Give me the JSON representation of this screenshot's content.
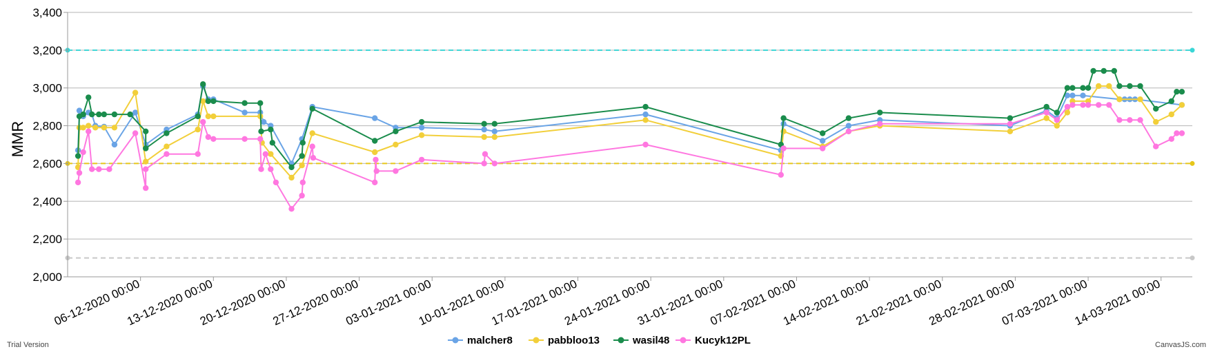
{
  "chart_data": {
    "type": "line",
    "ylabel": "MMR",
    "ylim": [
      2000,
      3400
    ],
    "yticks": [
      "2,000",
      "2,200",
      "2,400",
      "2,600",
      "2,800",
      "3,000",
      "3,200",
      "3,400"
    ],
    "xlim": [
      "2020-11-29 00:00",
      "2021-03-17 00:00"
    ],
    "xticks": [
      "06-12-2020 00:00",
      "13-12-2020 00:00",
      "20-12-2020 00:00",
      "27-12-2020 00:00",
      "03-01-2021 00:00",
      "10-01-2021 00:00",
      "17-01-2021 00:00",
      "24-01-2021 00:00",
      "31-01-2021 00:00",
      "07-02-2021 00:00",
      "14-02-2021 00:00",
      "21-02-2021 00:00",
      "28-02-2021 00:00",
      "07-03-2021 00:00",
      "14-03-2021 00:00"
    ],
    "grid": true,
    "legend": "bottom-center",
    "reference_lines": [
      {
        "value": 3200,
        "color": "#3ad6d6",
        "style": "dashed"
      },
      {
        "value": 2600,
        "color": "#e6c619",
        "style": "dashed"
      },
      {
        "value": 2100,
        "color": "#c8c8c8",
        "style": "dashed"
      }
    ],
    "series": [
      {
        "name": "malcher8",
        "color": "#6aa4e6",
        "points": [
          [
            "2020-11-30 00:00",
            2670
          ],
          [
            "2020-11-30 03:00",
            2880
          ],
          [
            "2020-11-30 12:00",
            2850
          ],
          [
            "2020-12-01 00:00",
            2870
          ],
          [
            "2020-12-01 08:00",
            2860
          ],
          [
            "2020-12-01 16:00",
            2800
          ],
          [
            "2020-12-02 12:00",
            2795
          ],
          [
            "2020-12-03 12:00",
            2700
          ],
          [
            "2020-12-05 12:00",
            2870
          ],
          [
            "2020-12-06 12:00",
            2700
          ],
          [
            "2020-12-08 12:00",
            2780
          ],
          [
            "2020-12-11 12:00",
            2860
          ],
          [
            "2020-12-12 00:00",
            3010
          ],
          [
            "2020-12-12 12:00",
            2940
          ],
          [
            "2020-12-13 00:00",
            2940
          ],
          [
            "2020-12-16 00:00",
            2870
          ],
          [
            "2020-12-17 12:00",
            2870
          ],
          [
            "2020-12-17 20:00",
            2820
          ],
          [
            "2020-12-18 12:00",
            2800
          ],
          [
            "2020-12-20 12:00",
            2600
          ],
          [
            "2020-12-21 12:00",
            2730
          ],
          [
            "2020-12-22 12:00",
            2900
          ],
          [
            "2020-12-28 12:00",
            2840
          ],
          [
            "2020-12-30 12:00",
            2790
          ],
          [
            "2021-01-02 00:00",
            2790
          ],
          [
            "2021-01-08 00:00",
            2780
          ],
          [
            "2021-01-09 00:00",
            2770
          ],
          [
            "2021-01-23 12:00",
            2860
          ],
          [
            "2021-02-05 12:00",
            2670
          ],
          [
            "2021-02-05 18:00",
            2810
          ],
          [
            "2021-02-09 12:00",
            2720
          ],
          [
            "2021-02-12 00:00",
            2800
          ],
          [
            "2021-02-15 00:00",
            2830
          ],
          [
            "2021-02-27 12:00",
            2800
          ],
          [
            "2021-03-03 00:00",
            2880
          ],
          [
            "2021-03-04 00:00",
            2840
          ],
          [
            "2021-03-05 00:00",
            2960
          ],
          [
            "2021-03-05 12:00",
            2960
          ],
          [
            "2021-03-06 12:00",
            2960
          ],
          [
            "2021-03-10 00:00",
            2940
          ],
          [
            "2021-03-10 12:00",
            2940
          ],
          [
            "2021-03-11 00:00",
            2940
          ],
          [
            "2021-03-11 12:00",
            2940
          ],
          [
            "2021-03-16 00:00",
            2910
          ]
        ]
      },
      {
        "name": "pabbloo13",
        "color": "#f2cf3a",
        "points": [
          [
            "2020-11-30 00:00",
            2580
          ],
          [
            "2020-11-30 03:00",
            2790
          ],
          [
            "2020-11-30 12:00",
            2790
          ],
          [
            "2020-12-01 00:00",
            2800
          ],
          [
            "2020-12-01 16:00",
            2790
          ],
          [
            "2020-12-02 12:00",
            2790
          ],
          [
            "2020-12-03 12:00",
            2790
          ],
          [
            "2020-12-05 12:00",
            2975
          ],
          [
            "2020-12-06 12:00",
            2610
          ],
          [
            "2020-12-08 12:00",
            2690
          ],
          [
            "2020-12-11 12:00",
            2780
          ],
          [
            "2020-12-12 00:00",
            2930
          ],
          [
            "2020-12-12 12:00",
            2850
          ],
          [
            "2020-12-13 00:00",
            2850
          ],
          [
            "2020-12-17 12:00",
            2850
          ],
          [
            "2020-12-17 16:00",
            2710
          ],
          [
            "2020-12-18 12:00",
            2650
          ],
          [
            "2020-12-20 12:00",
            2525
          ],
          [
            "2020-12-21 12:00",
            2590
          ],
          [
            "2020-12-22 12:00",
            2760
          ],
          [
            "2020-12-28 12:00",
            2660
          ],
          [
            "2020-12-30 12:00",
            2700
          ],
          [
            "2021-01-02 00:00",
            2750
          ],
          [
            "2021-01-08 00:00",
            2740
          ],
          [
            "2021-01-09 00:00",
            2740
          ],
          [
            "2021-01-23 12:00",
            2830
          ],
          [
            "2021-02-05 12:00",
            2640
          ],
          [
            "2021-02-05 18:00",
            2770
          ],
          [
            "2021-02-09 12:00",
            2690
          ],
          [
            "2021-02-12 00:00",
            2770
          ],
          [
            "2021-02-15 00:00",
            2800
          ],
          [
            "2021-02-27 12:00",
            2770
          ],
          [
            "2021-03-03 00:00",
            2840
          ],
          [
            "2021-03-04 00:00",
            2800
          ],
          [
            "2021-03-05 00:00",
            2870
          ],
          [
            "2021-03-05 12:00",
            2930
          ],
          [
            "2021-03-07 00:00",
            2930
          ],
          [
            "2021-03-08 00:00",
            3010
          ],
          [
            "2021-03-09 00:00",
            3010
          ],
          [
            "2021-03-10 00:00",
            2940
          ],
          [
            "2021-03-12 00:00",
            2940
          ],
          [
            "2021-03-13 12:00",
            2820
          ],
          [
            "2021-03-15 00:00",
            2860
          ],
          [
            "2021-03-16 00:00",
            2910
          ]
        ]
      },
      {
        "name": "wasil48",
        "color": "#1a8c4c",
        "points": [
          [
            "2020-11-30 00:00",
            2640
          ],
          [
            "2020-11-30 03:00",
            2850
          ],
          [
            "2020-11-30 12:00",
            2860
          ],
          [
            "2020-12-01 00:00",
            2950
          ],
          [
            "2020-12-01 08:00",
            2860
          ],
          [
            "2020-12-02 00:00",
            2860
          ],
          [
            "2020-12-02 12:00",
            2860
          ],
          [
            "2020-12-03 12:00",
            2860
          ],
          [
            "2020-12-05 00:00",
            2860
          ],
          [
            "2020-12-06 12:00",
            2770
          ],
          [
            "2020-12-06 12:00",
            2680
          ],
          [
            "2020-12-08 12:00",
            2760
          ],
          [
            "2020-12-11 12:00",
            2850
          ],
          [
            "2020-12-12 00:00",
            3020
          ],
          [
            "2020-12-12 12:00",
            2930
          ],
          [
            "2020-12-13 00:00",
            2930
          ],
          [
            "2020-12-16 00:00",
            2920
          ],
          [
            "2020-12-17 12:00",
            2920
          ],
          [
            "2020-12-17 14:00",
            2770
          ],
          [
            "2020-12-18 12:00",
            2780
          ],
          [
            "2020-12-18 16:00",
            2710
          ],
          [
            "2020-12-20 12:00",
            2580
          ],
          [
            "2020-12-21 12:00",
            2640
          ],
          [
            "2020-12-21 14:00",
            2710
          ],
          [
            "2020-12-22 12:00",
            2890
          ],
          [
            "2020-12-28 12:00",
            2720
          ],
          [
            "2020-12-30 12:00",
            2770
          ],
          [
            "2021-01-02 00:00",
            2820
          ],
          [
            "2021-01-08 00:00",
            2810
          ],
          [
            "2021-01-09 00:00",
            2810
          ],
          [
            "2021-01-23 12:00",
            2900
          ],
          [
            "2021-02-05 12:00",
            2700
          ],
          [
            "2021-02-05 18:00",
            2840
          ],
          [
            "2021-02-09 12:00",
            2760
          ],
          [
            "2021-02-12 00:00",
            2840
          ],
          [
            "2021-02-15 00:00",
            2870
          ],
          [
            "2021-02-27 12:00",
            2840
          ],
          [
            "2021-03-03 00:00",
            2900
          ],
          [
            "2021-03-04 00:00",
            2870
          ],
          [
            "2021-03-05 00:00",
            3000
          ],
          [
            "2021-03-05 12:00",
            3000
          ],
          [
            "2021-03-06 12:00",
            3000
          ],
          [
            "2021-03-07 00:00",
            3000
          ],
          [
            "2021-03-07 12:00",
            3090
          ],
          [
            "2021-03-08 12:00",
            3090
          ],
          [
            "2021-03-09 12:00",
            3090
          ],
          [
            "2021-03-10 00:00",
            3010
          ],
          [
            "2021-03-11 00:00",
            3010
          ],
          [
            "2021-03-12 00:00",
            3010
          ],
          [
            "2021-03-13 12:00",
            2890
          ],
          [
            "2021-03-15 00:00",
            2930
          ],
          [
            "2021-03-15 12:00",
            2980
          ],
          [
            "2021-03-16 00:00",
            2980
          ]
        ]
      },
      {
        "name": "Kucyk12PL",
        "color": "#ff77e0",
        "points": [
          [
            "2020-11-30 00:00",
            2500
          ],
          [
            "2020-11-30 03:00",
            2550
          ],
          [
            "2020-11-30 12:00",
            2660
          ],
          [
            "2020-12-01 00:00",
            2770
          ],
          [
            "2020-12-01 08:00",
            2570
          ],
          [
            "2020-12-02 00:00",
            2570
          ],
          [
            "2020-12-03 00:00",
            2570
          ],
          [
            "2020-12-05 12:00",
            2760
          ],
          [
            "2020-12-06 12:00",
            2470
          ],
          [
            "2020-12-06 12:00",
            2570
          ],
          [
            "2020-12-08 12:00",
            2650
          ],
          [
            "2020-12-11 12:00",
            2650
          ],
          [
            "2020-12-12 00:00",
            2820
          ],
          [
            "2020-12-12 12:00",
            2740
          ],
          [
            "2020-12-13 00:00",
            2730
          ],
          [
            "2020-12-16 00:00",
            2730
          ],
          [
            "2020-12-17 12:00",
            2730
          ],
          [
            "2020-12-17 14:00",
            2570
          ],
          [
            "2020-12-18 00:00",
            2650
          ],
          [
            "2020-12-18 12:00",
            2570
          ],
          [
            "2020-12-19 00:00",
            2500
          ],
          [
            "2020-12-20 12:00",
            2360
          ],
          [
            "2020-12-21 12:00",
            2430
          ],
          [
            "2020-12-21 14:00",
            2500
          ],
          [
            "2020-12-22 12:00",
            2690
          ],
          [
            "2020-12-22 14:00",
            2630
          ],
          [
            "2020-12-28 12:00",
            2500
          ],
          [
            "2020-12-28 14:00",
            2620
          ],
          [
            "2020-12-28 16:00",
            2560
          ],
          [
            "2020-12-30 12:00",
            2560
          ],
          [
            "2021-01-02 00:00",
            2620
          ],
          [
            "2021-01-08 00:00",
            2600
          ],
          [
            "2021-01-08 02:00",
            2650
          ],
          [
            "2021-01-09 00:00",
            2600
          ],
          [
            "2021-01-23 12:00",
            2700
          ],
          [
            "2021-02-05 12:00",
            2540
          ],
          [
            "2021-02-05 18:00",
            2680
          ],
          [
            "2021-02-09 12:00",
            2680
          ],
          [
            "2021-02-12 00:00",
            2770
          ],
          [
            "2021-02-15 00:00",
            2810
          ],
          [
            "2021-02-27 12:00",
            2810
          ],
          [
            "2021-03-03 00:00",
            2870
          ],
          [
            "2021-03-04 00:00",
            2830
          ],
          [
            "2021-03-05 00:00",
            2900
          ],
          [
            "2021-03-05 12:00",
            2910
          ],
          [
            "2021-03-06 12:00",
            2910
          ],
          [
            "2021-03-07 00:00",
            2910
          ],
          [
            "2021-03-08 00:00",
            2910
          ],
          [
            "2021-03-09 00:00",
            2910
          ],
          [
            "2021-03-10 00:00",
            2830
          ],
          [
            "2021-03-11 00:00",
            2830
          ],
          [
            "2021-03-12 00:00",
            2830
          ],
          [
            "2021-03-13 12:00",
            2690
          ],
          [
            "2021-03-15 00:00",
            2730
          ],
          [
            "2021-03-15 12:00",
            2760
          ],
          [
            "2021-03-16 00:00",
            2760
          ]
        ]
      }
    ]
  },
  "footer": {
    "left_credit": "Trial Version",
    "right_credit": "CanvasJS.com"
  }
}
